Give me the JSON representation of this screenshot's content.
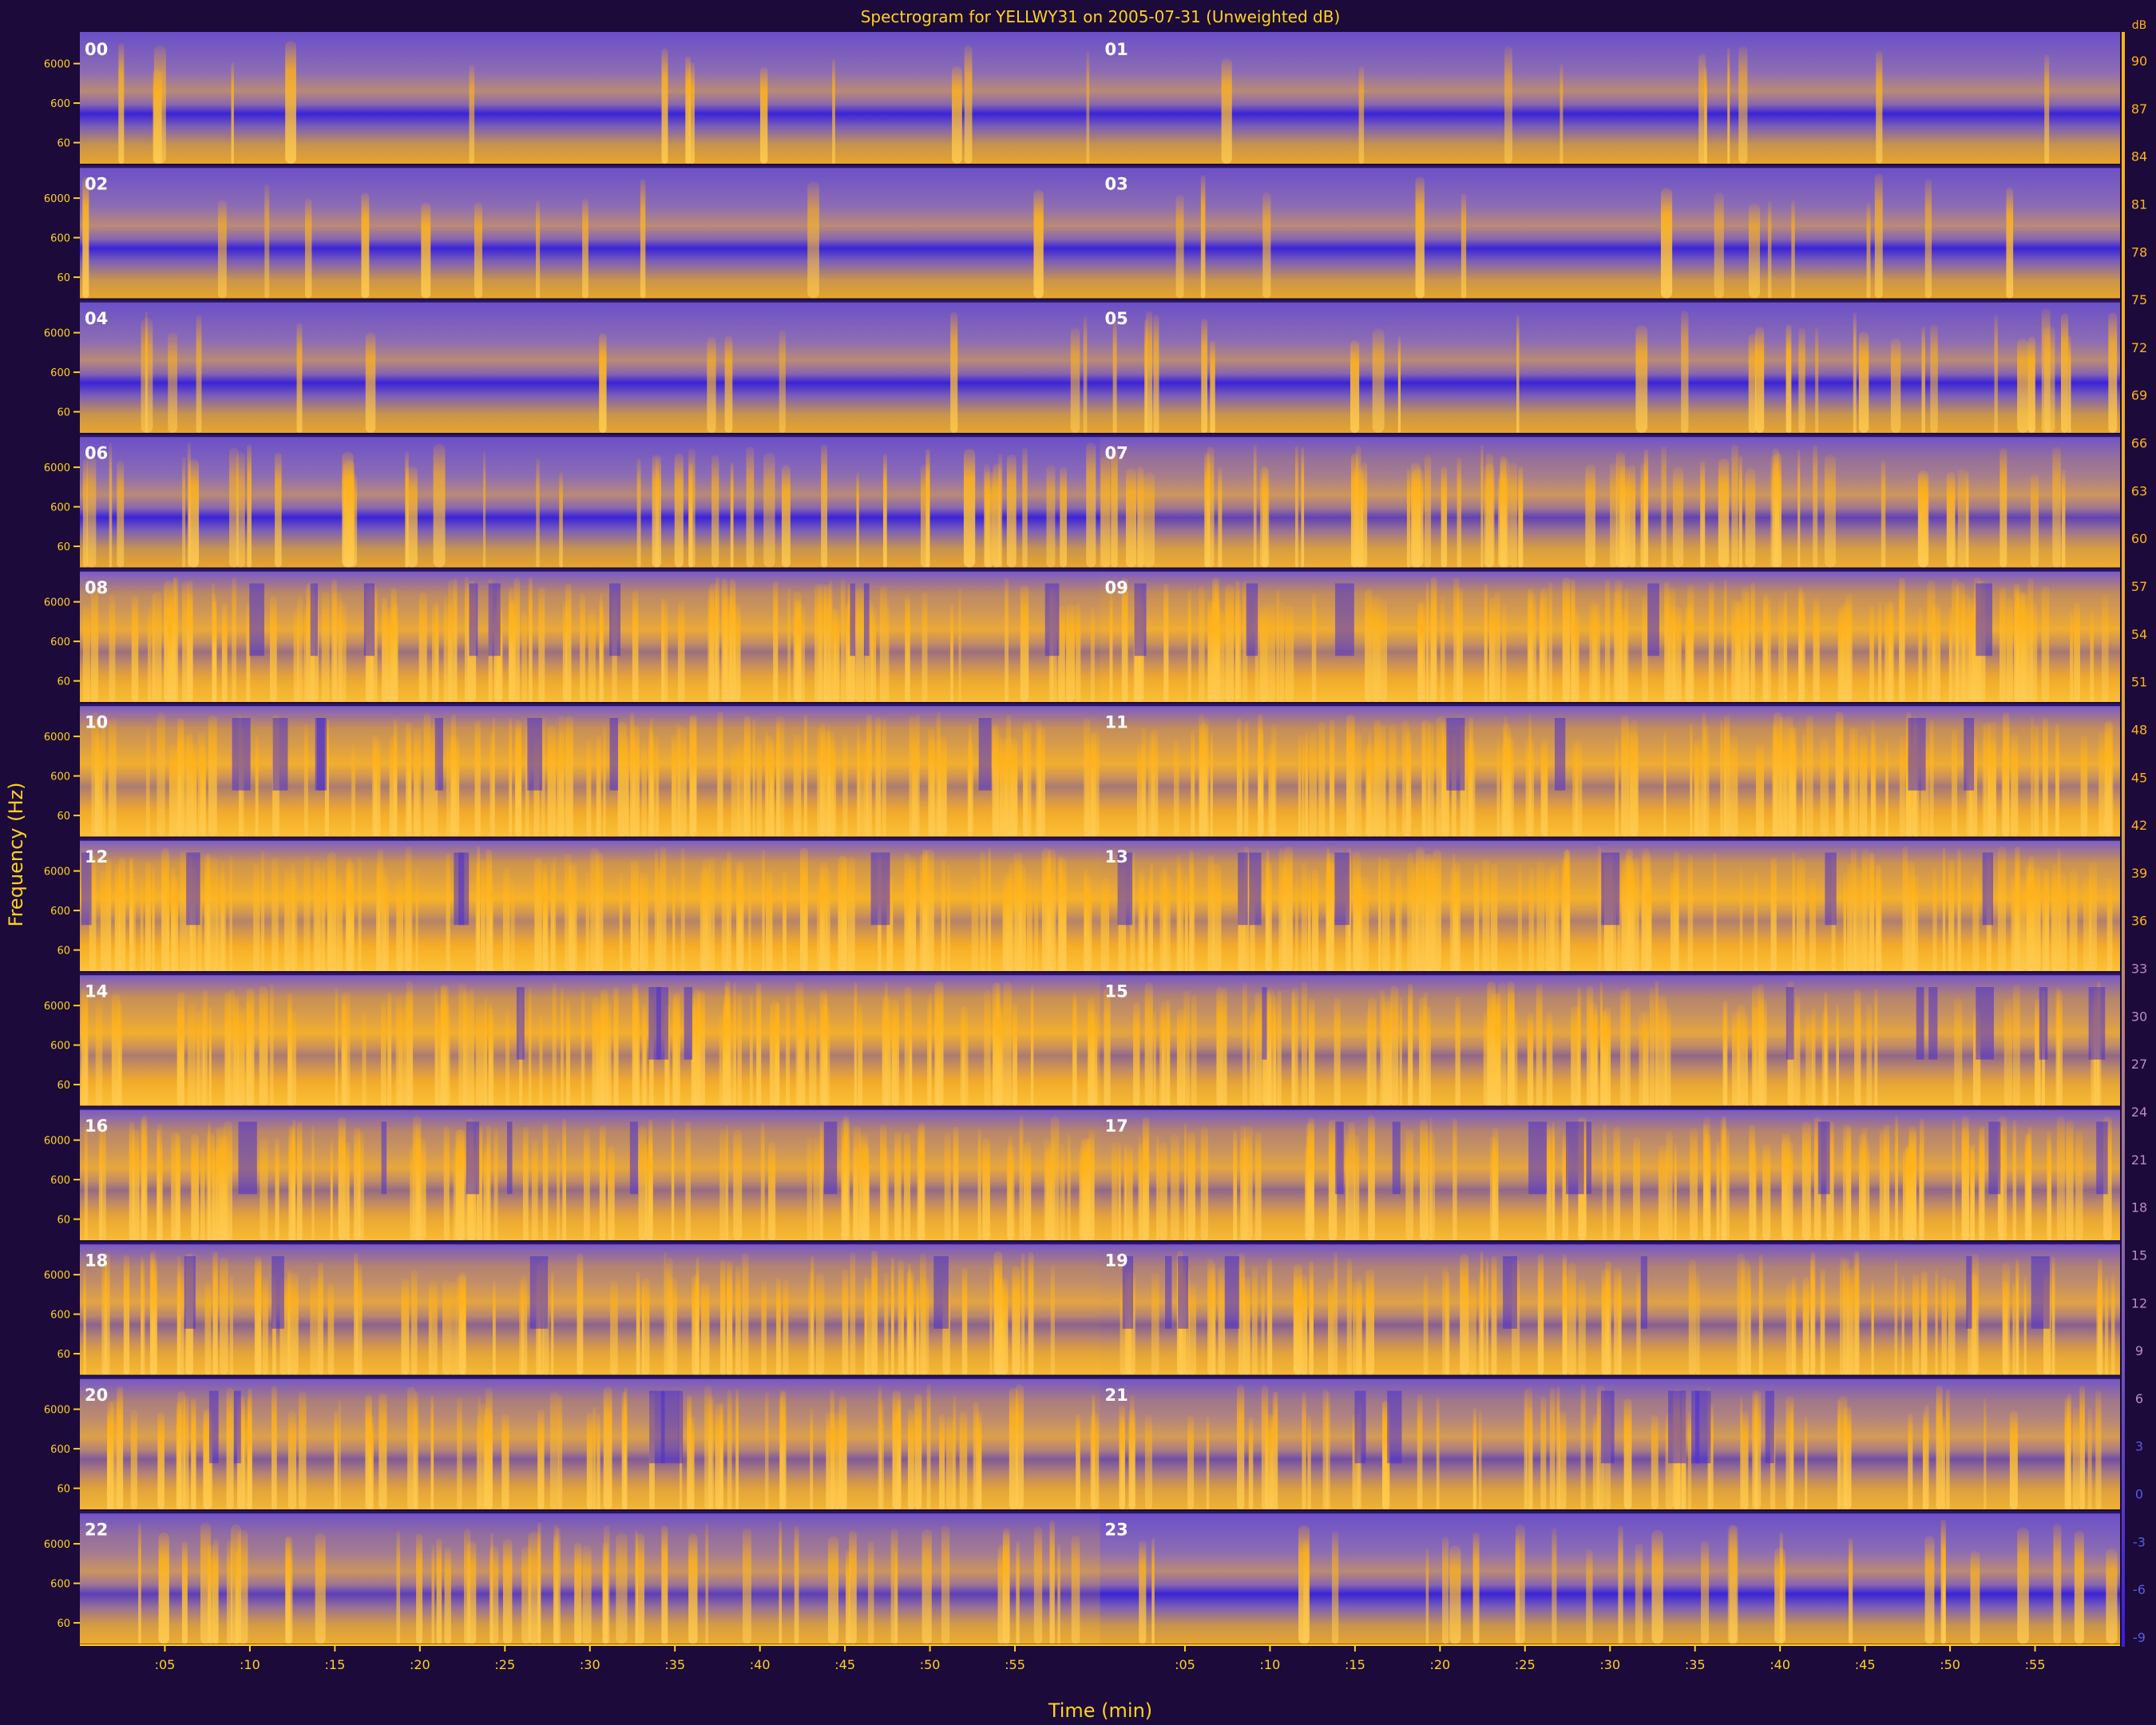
{
  "chart_data": {
    "type": "heatmap",
    "title": "Spectrogram for YELLWY31 on 2005-07-31 (Unweighted dB)",
    "xlabel": "Time (min)",
    "ylabel": "Frequency (Hz)",
    "y_ticks": [
      "6000",
      "600",
      "60"
    ],
    "y_scale": "log",
    "x_ticks": [
      ":05",
      ":10",
      ":15",
      ":20",
      ":25",
      ":30",
      ":35",
      ":40",
      ":45",
      ":50",
      ":55"
    ],
    "x_tick_minutes": [
      5,
      10,
      15,
      20,
      25,
      30,
      35,
      40,
      45,
      50,
      55
    ],
    "xlim_minutes": [
      0,
      60
    ],
    "colorbar": {
      "unit": "dB",
      "values": [
        90,
        87,
        84,
        81,
        78,
        75,
        72,
        69,
        66,
        63,
        60,
        57,
        54,
        51,
        48,
        45,
        42,
        39,
        36,
        33,
        30,
        27,
        24,
        21,
        18,
        15,
        12,
        9,
        6,
        3,
        0,
        -3,
        -6,
        -9
      ],
      "colors": {
        "low": "#3a1fd0",
        "mid": "#8a66aa",
        "high": "#ffb21a"
      }
    },
    "panels": [
      {
        "hour": "00",
        "activity": 0.2
      },
      {
        "hour": "01",
        "activity": 0.12
      },
      {
        "hour": "02",
        "activity": 0.16
      },
      {
        "hour": "03",
        "activity": 0.2
      },
      {
        "hour": "04",
        "activity": 0.18
      },
      {
        "hour": "05",
        "activity": 0.38
      },
      {
        "hour": "06",
        "activity": 0.5
      },
      {
        "hour": "07",
        "activity": 0.6
      },
      {
        "hour": "08",
        "activity": 0.82
      },
      {
        "hour": "09",
        "activity": 0.86
      },
      {
        "hour": "10",
        "activity": 0.88
      },
      {
        "hour": "11",
        "activity": 0.86
      },
      {
        "hour": "12",
        "activity": 0.92
      },
      {
        "hour": "13",
        "activity": 0.9
      },
      {
        "hour": "14",
        "activity": 0.88
      },
      {
        "hour": "15",
        "activity": 0.78
      },
      {
        "hour": "16",
        "activity": 0.8
      },
      {
        "hour": "17",
        "activity": 0.78
      },
      {
        "hour": "18",
        "activity": 0.76
      },
      {
        "hour": "19",
        "activity": 0.74
      },
      {
        "hour": "20",
        "activity": 0.72
      },
      {
        "hour": "21",
        "activity": 0.66
      },
      {
        "hour": "22",
        "activity": 0.58
      },
      {
        "hour": "23",
        "activity": 0.38
      }
    ]
  }
}
